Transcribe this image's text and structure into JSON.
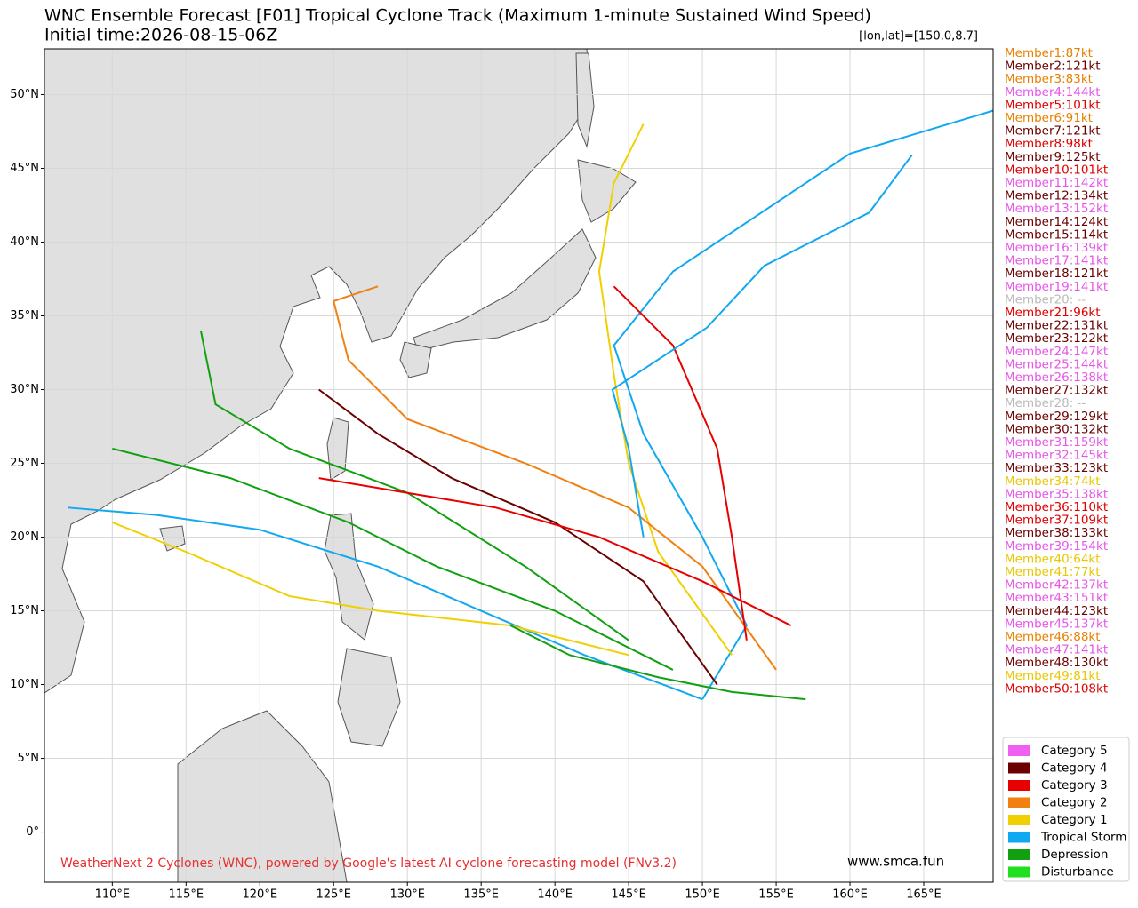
{
  "chart_data": {
    "type": "track_map",
    "title": "WNC Ensemble Forecast [F01] Tropical Cyclone Track (Maximum 1-minute Sustained Wind Speed)",
    "subtitle": "Initial time:2026-08-15-06Z",
    "position_note": "[lon,lat]=[150.0,8.7]",
    "credit": "WeatherNext 2 Cyclones (WNC), powered by Google's latest AI cyclone forecasting model (FNv3.2)",
    "website": "www.smca.fun",
    "xlim": [
      105.4,
      169.7
    ],
    "ylim": [
      -3.4,
      53.1
    ],
    "grid": true,
    "xticks": [
      {
        "value": 110,
        "label": "110°E"
      },
      {
        "value": 115,
        "label": "115°E"
      },
      {
        "value": 120,
        "label": "120°E"
      },
      {
        "value": 125,
        "label": "125°E"
      },
      {
        "value": 130,
        "label": "130°E"
      },
      {
        "value": 135,
        "label": "135°E"
      },
      {
        "value": 140,
        "label": "140°E"
      },
      {
        "value": 145,
        "label": "145°E"
      },
      {
        "value": 150,
        "label": "150°E"
      },
      {
        "value": 155,
        "label": "155°E"
      },
      {
        "value": 160,
        "label": "160°E"
      },
      {
        "value": 165,
        "label": "165°E"
      }
    ],
    "yticks": [
      {
        "value": 0,
        "label": "0°"
      },
      {
        "value": 5,
        "label": "5°N"
      },
      {
        "value": 10,
        "label": "10°N"
      },
      {
        "value": 15,
        "label": "15°N"
      },
      {
        "value": 20,
        "label": "20°N"
      },
      {
        "value": 25,
        "label": "25°N"
      },
      {
        "value": 30,
        "label": "30°N"
      },
      {
        "value": 35,
        "label": "35°N"
      },
      {
        "value": 40,
        "label": "40°N"
      },
      {
        "value": 45,
        "label": "45°N"
      },
      {
        "value": 50,
        "label": "50°N"
      }
    ],
    "legend": [
      {
        "name": "Category 5",
        "color": "#f060f0"
      },
      {
        "name": "Category 4",
        "color": "#6b0000"
      },
      {
        "name": "Category 3",
        "color": "#e80000"
      },
      {
        "name": "Category 2",
        "color": "#f08010"
      },
      {
        "name": "Category 1",
        "color": "#f0d000"
      },
      {
        "name": "Tropical Storm",
        "color": "#10a8f0"
      },
      {
        "name": "Depression",
        "color": "#10a010"
      },
      {
        "name": "Disturbance",
        "color": "#20e020"
      }
    ],
    "members": [
      {
        "label": "Member1:87kt",
        "color": "#e88000"
      },
      {
        "label": "Member2:121kt",
        "color": "#6b0000"
      },
      {
        "label": "Member3:83kt",
        "color": "#e88000"
      },
      {
        "label": "Member4:144kt",
        "color": "#e855e8"
      },
      {
        "label": "Member5:101kt",
        "color": "#e00000"
      },
      {
        "label": "Member6:91kt",
        "color": "#e88000"
      },
      {
        "label": "Member7:121kt",
        "color": "#6b0000"
      },
      {
        "label": "Member8:98kt",
        "color": "#e00000"
      },
      {
        "label": "Member9:125kt",
        "color": "#6b0000"
      },
      {
        "label": "Member10:101kt",
        "color": "#e00000"
      },
      {
        "label": "Member11:142kt",
        "color": "#e855e8"
      },
      {
        "label": "Member12:134kt",
        "color": "#6b0000"
      },
      {
        "label": "Member13:152kt",
        "color": "#e855e8"
      },
      {
        "label": "Member14:124kt",
        "color": "#6b0000"
      },
      {
        "label": "Member15:114kt",
        "color": "#6b0000"
      },
      {
        "label": "Member16:139kt",
        "color": "#e855e8"
      },
      {
        "label": "Member17:141kt",
        "color": "#e855e8"
      },
      {
        "label": "Member18:121kt",
        "color": "#6b0000"
      },
      {
        "label": "Member19:141kt",
        "color": "#e855e8"
      },
      {
        "label": "Member20: --",
        "color": "#bbbbbb"
      },
      {
        "label": "Member21:96kt",
        "color": "#e00000"
      },
      {
        "label": "Member22:131kt",
        "color": "#6b0000"
      },
      {
        "label": "Member23:122kt",
        "color": "#6b0000"
      },
      {
        "label": "Member24:147kt",
        "color": "#e855e8"
      },
      {
        "label": "Member25:144kt",
        "color": "#e855e8"
      },
      {
        "label": "Member26:138kt",
        "color": "#e855e8"
      },
      {
        "label": "Member27:132kt",
        "color": "#6b0000"
      },
      {
        "label": "Member28: --",
        "color": "#bbbbbb"
      },
      {
        "label": "Member29:129kt",
        "color": "#6b0000"
      },
      {
        "label": "Member30:132kt",
        "color": "#6b0000"
      },
      {
        "label": "Member31:159kt",
        "color": "#e855e8"
      },
      {
        "label": "Member32:145kt",
        "color": "#e855e8"
      },
      {
        "label": "Member33:123kt",
        "color": "#6b0000"
      },
      {
        "label": "Member34:74kt",
        "color": "#e8c800"
      },
      {
        "label": "Member35:138kt",
        "color": "#e855e8"
      },
      {
        "label": "Member36:110kt",
        "color": "#e00000"
      },
      {
        "label": "Member37:109kt",
        "color": "#e00000"
      },
      {
        "label": "Member38:133kt",
        "color": "#6b0000"
      },
      {
        "label": "Member39:154kt",
        "color": "#e855e8"
      },
      {
        "label": "Member40:64kt",
        "color": "#e8c800"
      },
      {
        "label": "Member41:77kt",
        "color": "#e8c800"
      },
      {
        "label": "Member42:137kt",
        "color": "#e855e8"
      },
      {
        "label": "Member43:151kt",
        "color": "#e855e8"
      },
      {
        "label": "Member44:123kt",
        "color": "#6b0000"
      },
      {
        "label": "Member45:137kt",
        "color": "#e855e8"
      },
      {
        "label": "Member46:88kt",
        "color": "#e88000"
      },
      {
        "label": "Member47:141kt",
        "color": "#e855e8"
      },
      {
        "label": "Member48:130kt",
        "color": "#6b0000"
      },
      {
        "label": "Member49:81kt",
        "color": "#e8c800"
      },
      {
        "label": "Member50:108kt",
        "color": "#e00000"
      }
    ],
    "tracks": [
      {
        "color": "#10a8f0",
        "lon": [
          150,
          142,
          135,
          128,
          120,
          113,
          107
        ],
        "lat": [
          9,
          12,
          15,
          18,
          20.5,
          21.5,
          22
        ]
      },
      {
        "color": "#10a8f0",
        "lon": [
          150,
          153,
          150,
          146,
          144,
          148,
          160,
          170
        ],
        "lat": [
          9,
          14,
          20,
          27,
          33,
          38,
          46,
          49
        ]
      },
      {
        "color": "#6b0000",
        "lon": [
          151,
          146,
          140,
          133,
          128,
          124
        ],
        "lat": [
          10,
          17,
          21,
          24,
          27,
          30
        ]
      },
      {
        "color": "#f0d000",
        "lon": [
          152,
          147,
          145,
          144,
          143,
          144,
          146
        ],
        "lat": [
          12,
          19,
          25,
          31,
          38,
          44,
          48
        ]
      },
      {
        "color": "#f08010",
        "lon": [
          155,
          150,
          145,
          138,
          130,
          126,
          125,
          128
        ],
        "lat": [
          11,
          18,
          22,
          25,
          28,
          32,
          36,
          37
        ]
      },
      {
        "color": "#10a010",
        "lon": [
          148,
          140,
          132,
          126,
          118,
          110
        ],
        "lat": [
          11,
          15,
          18,
          21,
          24,
          26
        ]
      },
      {
        "color": "#e80000",
        "lon": [
          153,
          152,
          151,
          148,
          144
        ],
        "lat": [
          13,
          20,
          26,
          33,
          37
        ]
      },
      {
        "color": "#10a8f0",
        "lon": [
          146,
          145,
          143.9,
          150.3,
          154.2,
          161.3,
          164.2
        ],
        "lat": [
          20,
          26,
          30,
          34.2,
          38.4,
          42,
          45.9
        ]
      },
      {
        "color": "#10a010",
        "lon": [
          145,
          138,
          130,
          122,
          117,
          116
        ],
        "lat": [
          13,
          18,
          23,
          26,
          29,
          34
        ]
      },
      {
        "color": "#f0d000",
        "lon": [
          145,
          137,
          128,
          122,
          115,
          110
        ],
        "lat": [
          12,
          14,
          15,
          16,
          19,
          21
        ]
      },
      {
        "color": "#e80000",
        "lon": [
          156,
          150,
          143,
          136,
          130,
          124
        ],
        "lat": [
          14,
          17,
          20,
          22,
          23,
          24
        ]
      },
      {
        "color": "#10a010",
        "lon": [
          157,
          152,
          147,
          141,
          137
        ],
        "lat": [
          9,
          9.5,
          10.5,
          12,
          14
        ]
      }
    ]
  }
}
